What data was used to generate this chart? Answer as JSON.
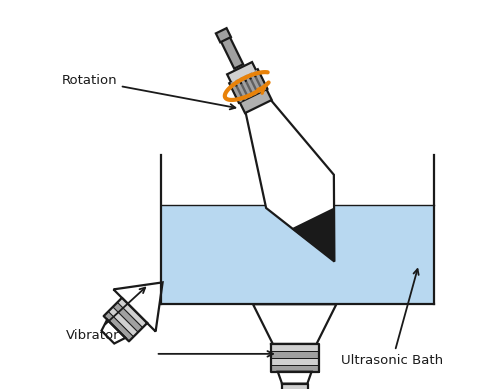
{
  "bg": "#ffffff",
  "water_color": "#b8d8f0",
  "lc": "#1a1a1a",
  "gray_light": "#d0d0d0",
  "gray_mid": "#a0a0a0",
  "gray_dark": "#606060",
  "gray_cap": "#b0b0b0",
  "orange": "#e8820a",
  "particle_color": "#1a1a1a",
  "figsize": [
    5.0,
    3.9
  ],
  "dpi": 100,
  "labels": {
    "rotation": "Rotation",
    "vibrator": "Vibrator",
    "ultrasonic": "Ultrasonic Bath"
  }
}
